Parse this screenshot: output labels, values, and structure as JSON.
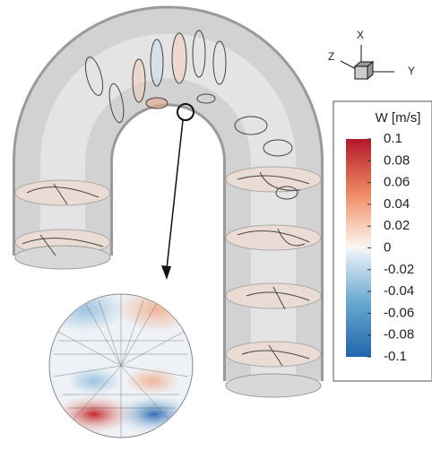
{
  "triad": {
    "x": "X",
    "y": "Y",
    "z": "Z"
  },
  "colorbar": {
    "title": "W [m/s]",
    "lim": [
      -0.1,
      0.1
    ],
    "ticks": [
      0.1,
      0.08,
      0.06,
      0.04,
      0.02,
      0,
      -0.02,
      -0.04,
      -0.06,
      -0.08,
      -0.1
    ]
  }
}
